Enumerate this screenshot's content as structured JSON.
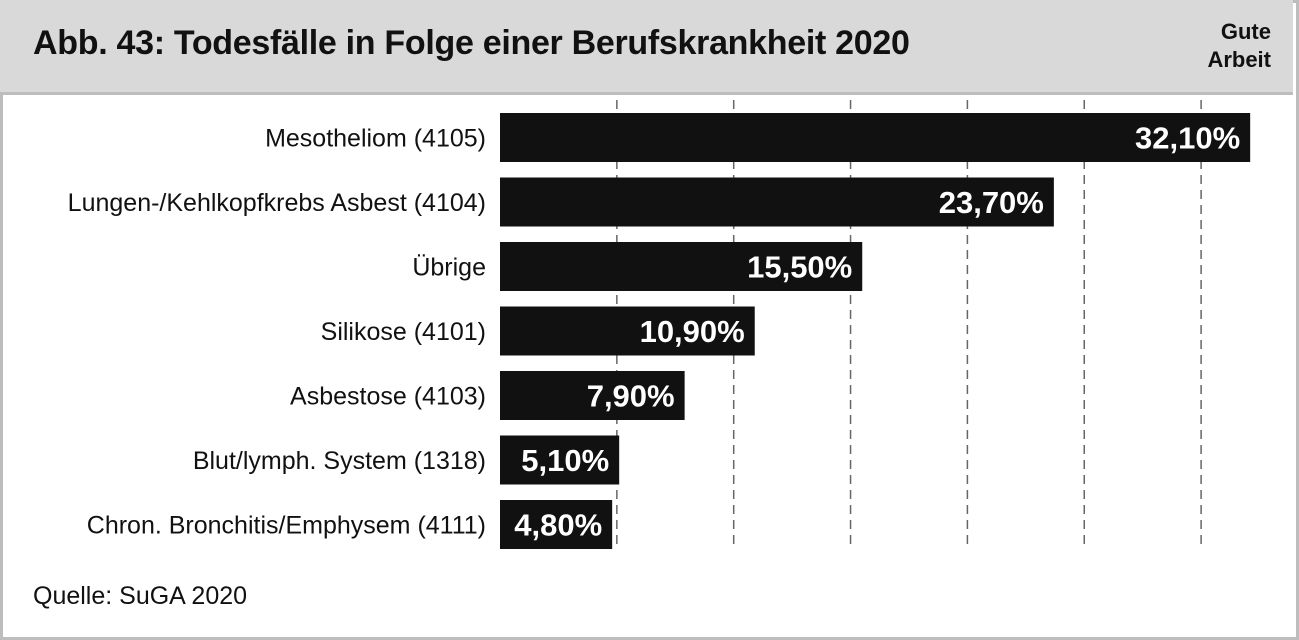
{
  "header": {
    "title": "Abb. 43: Todesfälle in Folge einer Berufskrankheit 2020",
    "brand_line1": "Gute",
    "brand_line2": "Arbeit"
  },
  "source": "Quelle: SuGA 2020",
  "colors": {
    "header_bg": "#d9d9d9",
    "border": "#bdbdbd",
    "bar": "#111111",
    "bar_label": "#ffffff",
    "grid": "#666666"
  },
  "chart_data": {
    "type": "bar",
    "orientation": "horizontal",
    "categories": [
      "Mesotheliom (4105)",
      "Lungen-/Kehlkopfkrebs Asbest (4104)",
      "Übrige",
      "Silikose (4101)",
      "Asbestose (4103)",
      "Blut/lymph. System (1318)",
      "Chron. Bronchitis/Emphysem (4111)"
    ],
    "values": [
      32.1,
      23.7,
      15.5,
      10.9,
      7.9,
      5.1,
      4.8
    ],
    "value_labels": [
      "32,10%",
      "23,70%",
      "15,50%",
      "10,90%",
      "7,90%",
      "5,10%",
      "4,80%"
    ],
    "xlim": [
      0,
      33
    ],
    "grid_step": 5,
    "grid": true
  }
}
